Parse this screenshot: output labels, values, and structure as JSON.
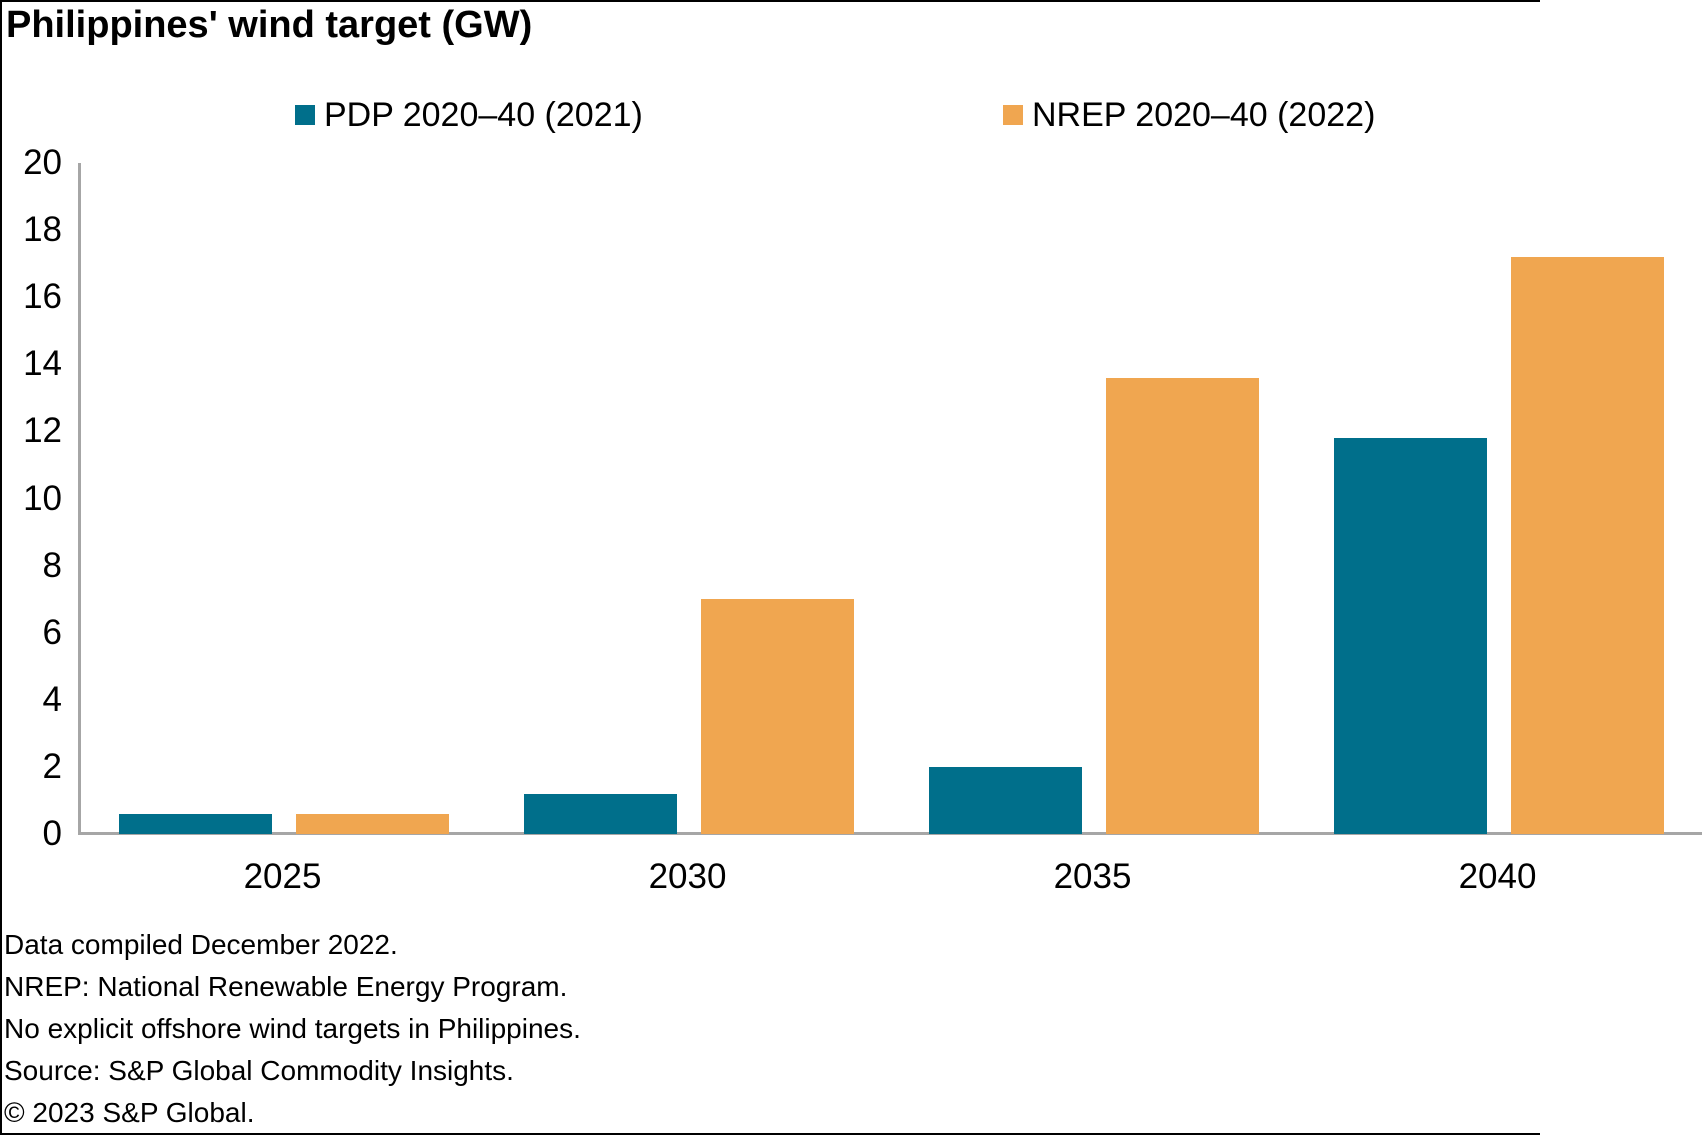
{
  "title": "Philippines' wind target (GW)",
  "chart_data": {
    "type": "bar",
    "categories": [
      "2025",
      "2030",
      "2035",
      "2040"
    ],
    "series": [
      {
        "name": "PDP 2020–40 (2021)",
        "color": "#006F8B",
        "values": [
          0.6,
          1.2,
          2.0,
          11.8
        ]
      },
      {
        "name": "NREP 2020–40 (2022)",
        "color": "#F0A650",
        "values": [
          0.6,
          7.0,
          13.6,
          17.2
        ]
      }
    ],
    "title": "Philippines' wind target (GW)",
    "xlabel": "",
    "ylabel": "",
    "ylim": [
      0,
      20
    ],
    "yticks": [
      0,
      2,
      4,
      6,
      8,
      10,
      12,
      14,
      16,
      18,
      20
    ],
    "grid": false,
    "legend_position": "top",
    "axis_color": "#A6A6A6"
  },
  "footnotes": [
    "Data compiled December 2022.",
    "NREP: National Renewable Energy Program.",
    "No explicit offshore wind targets in Philippines.",
    "Source: S&P Global Commodity Insights.",
    "© 2023 S&P Global."
  ]
}
